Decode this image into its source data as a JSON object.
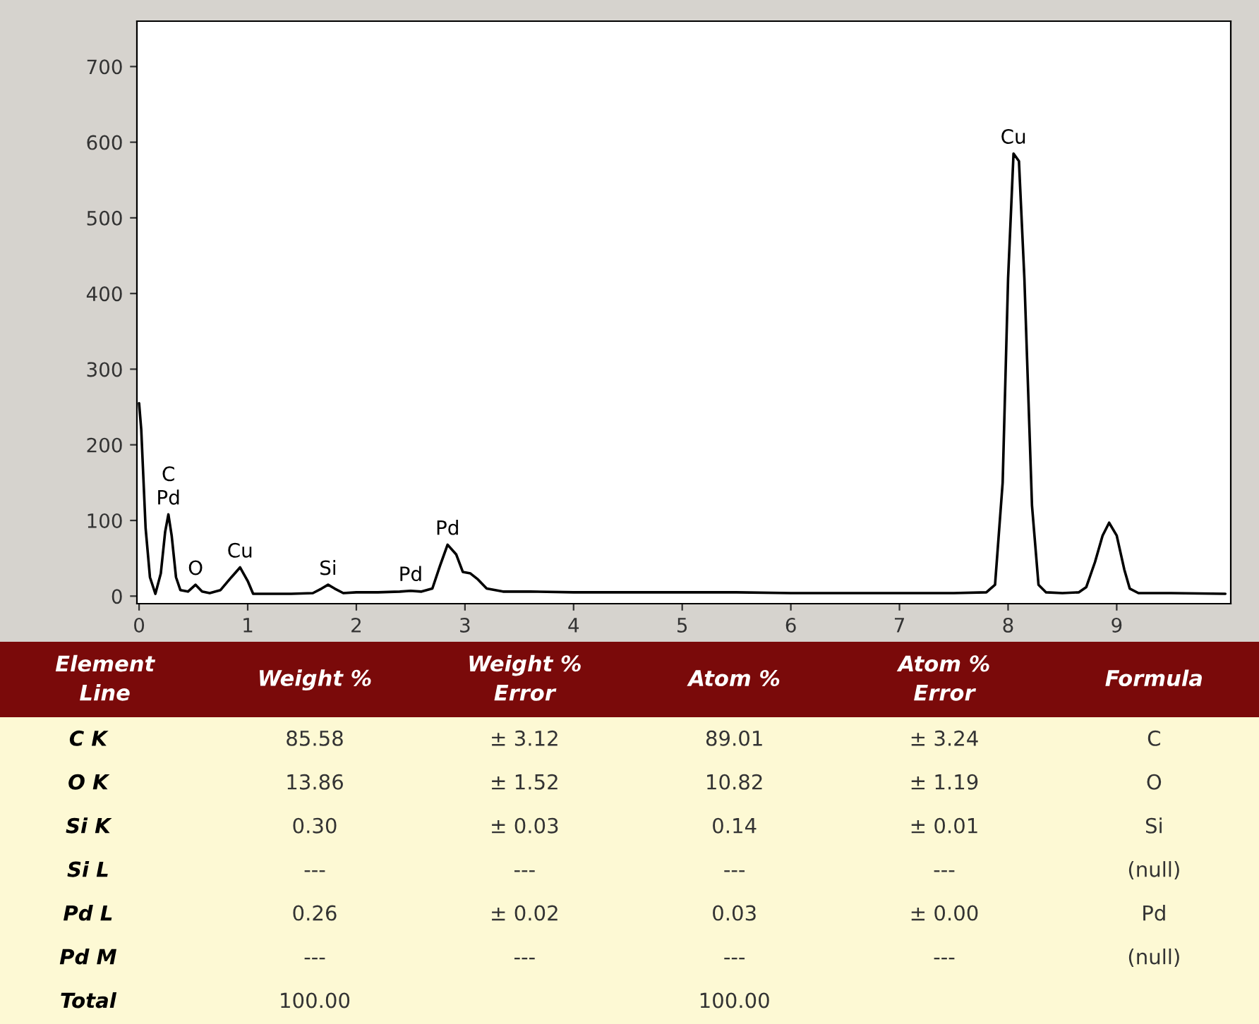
{
  "chart_data": [
    {
      "type": "line",
      "color": "#000000",
      "x": [
        0,
        0.02,
        0.06,
        0.1,
        0.15,
        0.2,
        0.24,
        0.27,
        0.3,
        0.34,
        0.38,
        0.45,
        0.52,
        0.58,
        0.65,
        0.75,
        0.85,
        0.93,
        1.0,
        1.05,
        1.2,
        1.4,
        1.6,
        1.68,
        1.74,
        1.8,
        1.88,
        2.0,
        2.2,
        2.4,
        2.5,
        2.6,
        2.7,
        2.77,
        2.84,
        2.92,
        2.98,
        3.05,
        3.12,
        3.2,
        3.35,
        3.6,
        4.0,
        4.5,
        5.0,
        5.5,
        6.0,
        6.5,
        7.0,
        7.5,
        7.8,
        7.88,
        7.95,
        8.0,
        8.05,
        8.1,
        8.15,
        8.22,
        8.28,
        8.35,
        8.5,
        8.65,
        8.72,
        8.8,
        8.87,
        8.93,
        9.0,
        9.07,
        9.12,
        9.2,
        9.5,
        10.0
      ],
      "values": [
        255,
        220,
        90,
        25,
        3,
        30,
        85,
        108,
        80,
        25,
        8,
        6,
        15,
        6,
        4,
        8,
        25,
        38,
        20,
        3,
        3,
        3,
        4,
        10,
        15,
        10,
        4,
        5,
        5,
        6,
        7,
        6,
        10,
        40,
        68,
        55,
        32,
        30,
        22,
        10,
        6,
        6,
        5,
        5,
        5,
        5,
        4,
        4,
        4,
        4,
        5,
        15,
        150,
        420,
        585,
        575,
        420,
        120,
        15,
        5,
        4,
        5,
        12,
        45,
        80,
        97,
        80,
        35,
        10,
        4,
        4,
        3
      ],
      "xlim": [
        -0.02,
        10.05
      ],
      "ylim": [
        -10,
        760
      ],
      "xticks": [
        0,
        1,
        2,
        3,
        4,
        5,
        6,
        7,
        8,
        9
      ],
      "yticks": [
        0,
        100,
        200,
        300,
        400,
        500,
        600,
        700
      ],
      "grid": false,
      "annotations": [
        {
          "text": "Pd",
          "x": 0.27,
          "y": 108
        },
        {
          "text": "C",
          "x": 0.27,
          "y": 108
        },
        {
          "text": "O",
          "x": 0.52,
          "y": 15
        },
        {
          "text": "Cu",
          "x": 0.93,
          "y": 38
        },
        {
          "text": "Si",
          "x": 1.74,
          "y": 15
        },
        {
          "text": "Pd",
          "x": 2.5,
          "y": 7
        },
        {
          "text": "Pd",
          "x": 2.84,
          "y": 68
        },
        {
          "text": "Cu",
          "x": 8.05,
          "y": 585
        }
      ]
    },
    {
      "type": "other",
      "categories": [
        "Element\nLine",
        "Weight %",
        "Weight %\nError",
        "Atom %",
        "Atom %\nError",
        "Formula"
      ],
      "annotations": [
        "C K",
        "85.58",
        "± 3.12",
        "89.01",
        "± 3.24",
        "C",
        "O K",
        "13.86",
        "± 1.52",
        "10.82",
        "± 1.19",
        "O",
        "Si K",
        "0.30",
        "± 0.03",
        "0.14",
        "± 0.01",
        "Si",
        "Si L",
        "---",
        "---",
        "---",
        "---",
        "(null)",
        "Pd L",
        "0.26",
        "± 0.02",
        "0.03",
        "± 0.00",
        "Pd",
        "Pd M",
        "---",
        "---",
        "---",
        "---",
        "(null)",
        "Total",
        "100.00",
        null,
        "100.00",
        null,
        null
      ]
    }
  ]
}
